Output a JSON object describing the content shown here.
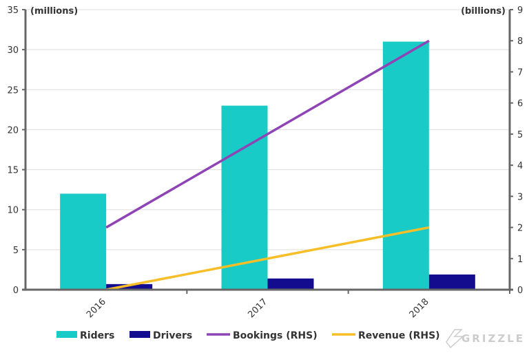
{
  "chart_data": {
    "type": "bar",
    "categories": [
      "2016",
      "2017",
      "2018"
    ],
    "left_unit": "(millions)",
    "right_unit": "(billions)",
    "ylim_left": [
      0,
      35
    ],
    "ylim_right": [
      0,
      9
    ],
    "left_ticks": [
      0,
      5,
      10,
      15,
      20,
      25,
      30,
      35
    ],
    "right_ticks": [
      0,
      1,
      2,
      3,
      4,
      5,
      6,
      7,
      8,
      9
    ],
    "grid": true,
    "legend_position": "bottom",
    "series": [
      {
        "name": "Riders",
        "type": "bar",
        "axis": "left",
        "color": "#19CBC6",
        "values": [
          12,
          23,
          31
        ]
      },
      {
        "name": "Drivers",
        "type": "bar",
        "axis": "left",
        "color": "#130C8F",
        "values": [
          0.7,
          1.4,
          1.9
        ]
      },
      {
        "name": "Bookings (RHS)",
        "type": "line",
        "axis": "right",
        "color": "#8E44B5",
        "values": [
          2,
          5,
          8
        ]
      },
      {
        "name": "Revenue (RHS)",
        "type": "line",
        "axis": "right",
        "color": "#F7BE27",
        "values": [
          0,
          1,
          2
        ]
      }
    ]
  },
  "watermark": "GRIZZLE"
}
